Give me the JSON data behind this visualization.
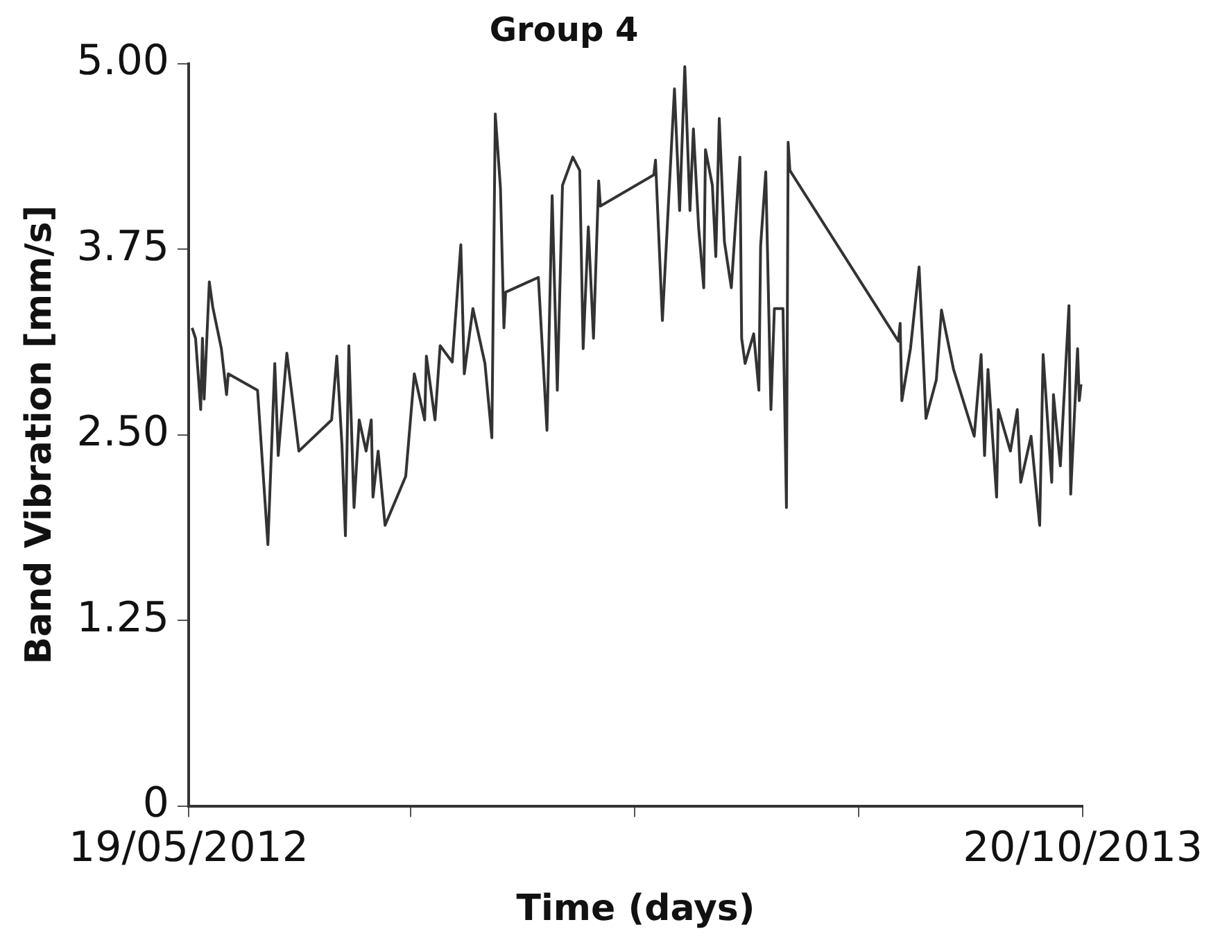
{
  "chart_data": {
    "type": "line",
    "title": "Group 4",
    "xlabel": "Time (days)",
    "ylabel": "Band Vibration [mm/s]",
    "color": "#333333",
    "grid": false,
    "legend": false,
    "xlim": [
      "2012-05-19",
      "2013-10-20"
    ],
    "xticks": [
      {
        "value": "2012-05-19",
        "label": "19/05/2012"
      },
      {
        "value": "2012-09-25",
        "label": null
      },
      {
        "value": "2013-02-02",
        "label": null
      },
      {
        "value": "2013-06-12",
        "label": null
      },
      {
        "value": "2013-10-20",
        "label": "20/10/2013"
      }
    ],
    "ylim": [
      0,
      5
    ],
    "yticks": [
      0,
      1.25,
      {
        "value": 2.5,
        "label": "2.50"
      },
      3.75,
      {
        "value": 5,
        "label": "5.00"
      }
    ],
    "x": [
      "2012-05-21",
      "2012-05-23",
      "2012-05-26",
      "2012-05-27",
      "2012-05-28",
      "2012-05-31",
      "2012-06-02",
      "2012-06-07",
      "2012-06-10",
      "2012-06-11",
      "2012-06-28",
      "2012-07-04",
      "2012-07-08",
      "2012-07-10",
      "2012-07-15",
      "2012-07-22",
      "2012-08-10",
      "2012-08-13",
      "2012-08-16",
      "2012-08-18",
      "2012-08-20",
      "2012-08-23",
      "2012-08-26",
      "2012-08-30",
      "2012-09-02",
      "2012-09-03",
      "2012-09-06",
      "2012-09-10",
      "2012-09-22",
      "2012-09-27",
      "2012-10-03",
      "2012-10-04",
      "2012-10-09",
      "2012-10-12",
      "2012-10-19",
      "2012-10-24",
      "2012-10-26",
      "2012-10-31",
      "2012-11-07",
      "2012-11-11",
      "2012-11-13",
      "2012-11-16",
      "2012-11-18",
      "2012-11-19",
      "2012-12-08",
      "2012-12-13",
      "2012-12-16",
      "2012-12-19",
      "2012-12-22",
      "2012-12-28",
      "2013-01-01",
      "2013-01-03",
      "2013-01-06",
      "2013-01-09",
      "2013-01-12",
      "2013-01-13",
      "2013-02-13",
      "2013-02-14",
      "2013-02-18",
      "2013-02-21",
      "2013-02-25",
      "2013-02-28",
      "2013-03-03",
      "2013-03-06",
      "2013-03-08",
      "2013-03-11",
      "2013-03-14",
      "2013-03-15",
      "2013-03-19",
      "2013-03-21",
      "2013-03-23",
      "2013-03-26",
      "2013-03-30",
      "2013-04-04",
      "2013-04-05",
      "2013-04-07",
      "2013-04-12",
      "2013-04-15",
      "2013-04-16",
      "2013-04-19",
      "2013-04-22",
      "2013-04-24",
      "2013-04-29",
      "2013-05-01",
      "2013-05-02",
      "2013-05-03",
      "2013-07-05",
      "2013-07-06",
      "2013-07-07",
      "2013-07-12",
      "2013-07-17",
      "2013-07-21",
      "2013-07-27",
      "2013-07-30",
      "2013-08-06",
      "2013-08-18",
      "2013-08-22",
      "2013-08-24",
      "2013-08-26",
      "2013-08-31",
      "2013-09-01",
      "2013-09-08",
      "2013-09-12",
      "2013-09-14",
      "2013-09-20",
      "2013-09-25",
      "2013-09-27",
      "2013-10-02",
      "2013-10-03",
      "2013-10-07",
      "2013-10-12",
      "2013-10-13",
      "2013-10-17",
      "2013-10-18",
      "2013-10-19"
    ],
    "values": [
      3.22,
      3.15,
      2.67,
      3.15,
      2.74,
      3.53,
      3.36,
      3.08,
      2.77,
      2.91,
      2.8,
      1.76,
      2.98,
      2.36,
      3.05,
      2.39,
      2.6,
      3.03,
      2.43,
      1.82,
      3.1,
      2.01,
      2.6,
      2.39,
      2.6,
      2.08,
      2.39,
      1.89,
      2.22,
      2.91,
      2.6,
      3.03,
      2.6,
      3.1,
      2.99,
      3.78,
      2.91,
      3.35,
      2.98,
      2.48,
      4.66,
      4.16,
      3.22,
      3.46,
      3.56,
      2.53,
      4.11,
      2.8,
      4.18,
      4.37,
      4.28,
      3.08,
      3.9,
      3.15,
      4.21,
      4.04,
      4.25,
      4.35,
      3.27,
      3.94,
      4.83,
      4.01,
      4.98,
      4.01,
      4.56,
      3.9,
      3.49,
      4.42,
      4.18,
      3.7,
      4.63,
      3.8,
      3.49,
      4.37,
      3.15,
      2.98,
      3.18,
      2.8,
      3.77,
      4.27,
      2.67,
      3.35,
      3.35,
      2.01,
      4.47,
      4.28,
      3.13,
      3.25,
      2.73,
      3.08,
      3.63,
      2.61,
      2.87,
      3.34,
      2.94,
      2.49,
      3.04,
      2.36,
      2.94,
      2.08,
      2.67,
      2.39,
      2.67,
      2.18,
      2.49,
      1.89,
      3.04,
      2.18,
      2.77,
      2.29,
      3.37,
      2.1,
      3.08,
      2.73,
      2.84
    ]
  }
}
